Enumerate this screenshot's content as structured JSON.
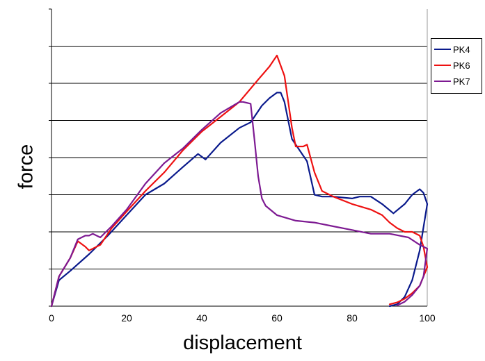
{
  "chart_data": {
    "type": "line",
    "xlabel": "displacement",
    "ylabel": "force",
    "xlim": [
      0,
      100
    ],
    "ylim": [
      0,
      8
    ],
    "x_ticks": [
      "0",
      "20",
      "40",
      "60",
      "80",
      "100"
    ],
    "x_tick_values": [
      0,
      20,
      40,
      60,
      80,
      100
    ],
    "y_gridlines": [
      1,
      2,
      3,
      4,
      5,
      6,
      7
    ],
    "y_tick_labels_shown": false,
    "grid": "horizontal",
    "legend_position": "right",
    "series": [
      {
        "name": "PK4",
        "color": "#0a1a8c",
        "x": [
          0,
          2,
          5,
          10,
          15,
          20,
          25,
          30,
          35,
          39,
          41,
          45,
          50,
          53,
          56,
          58,
          60,
          61,
          62,
          64,
          66,
          68,
          70,
          72,
          75,
          80,
          82,
          85,
          88,
          91,
          94,
          96,
          98,
          99,
          100,
          98,
          96,
          94,
          92,
          90
        ],
        "y": [
          0,
          0.7,
          0.95,
          1.4,
          1.9,
          2.45,
          3.0,
          3.3,
          3.75,
          4.1,
          3.95,
          4.4,
          4.8,
          4.95,
          5.4,
          5.6,
          5.75,
          5.75,
          5.5,
          4.5,
          4.2,
          3.9,
          3.0,
          2.95,
          2.95,
          2.9,
          2.95,
          2.95,
          2.75,
          2.5,
          2.75,
          3.0,
          3.15,
          3.05,
          2.75,
          1.5,
          0.7,
          0.25,
          0.05,
          0.0
        ]
      },
      {
        "name": "PK6",
        "color": "#ee1111",
        "x": [
          0,
          2,
          5,
          7,
          9,
          10,
          13,
          16,
          20,
          25,
          30,
          35,
          40,
          45,
          50,
          55,
          58,
          60,
          62,
          64,
          65,
          67,
          68,
          70,
          72,
          75,
          80,
          85,
          88,
          90,
          92,
          94,
          96,
          98,
          99,
          100,
          99,
          98,
          96,
          94,
          92,
          90
        ],
        "y": [
          0,
          0.8,
          1.3,
          1.75,
          1.6,
          1.5,
          1.65,
          2.1,
          2.55,
          3.1,
          3.6,
          4.2,
          4.7,
          5.1,
          5.5,
          6.1,
          6.45,
          6.75,
          6.2,
          4.8,
          4.3,
          4.3,
          4.35,
          3.6,
          3.1,
          2.95,
          2.75,
          2.6,
          2.45,
          2.25,
          2.1,
          2.0,
          2.0,
          1.9,
          1.6,
          1.05,
          0.8,
          0.55,
          0.35,
          0.2,
          0.1,
          0.05
        ]
      },
      {
        "name": "PK7",
        "color": "#7d1a92",
        "x": [
          0,
          2,
          5,
          7,
          9,
          10,
          11,
          13,
          16,
          20,
          25,
          30,
          35,
          40,
          45,
          50,
          51,
          53,
          54,
          55,
          56,
          57,
          60,
          65,
          70,
          75,
          80,
          85,
          90,
          95,
          98,
          100,
          99,
          98,
          96,
          94,
          92
        ],
        "y": [
          0,
          0.8,
          1.3,
          1.8,
          1.9,
          1.9,
          1.95,
          1.85,
          2.15,
          2.6,
          3.3,
          3.85,
          4.25,
          4.75,
          5.2,
          5.5,
          5.5,
          5.45,
          4.5,
          3.5,
          2.9,
          2.7,
          2.45,
          2.3,
          2.25,
          2.15,
          2.05,
          1.95,
          1.95,
          1.85,
          1.65,
          1.55,
          0.8,
          0.55,
          0.3,
          0.12,
          0.02
        ]
      }
    ]
  }
}
